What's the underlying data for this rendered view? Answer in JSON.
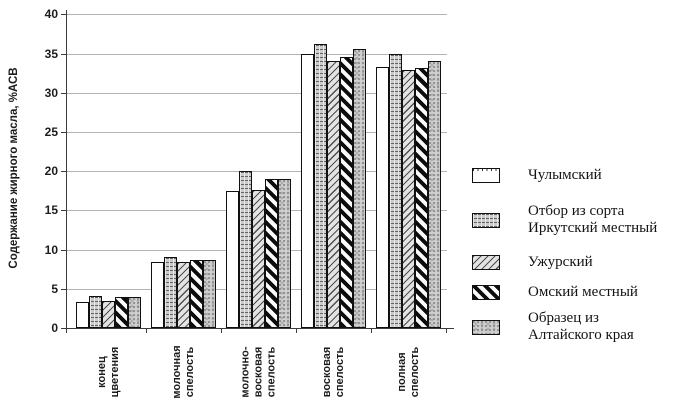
{
  "colors": {
    "background": "#ffffff",
    "grid": "#b4b4b4",
    "axis": "#3c3c3c",
    "text": "#1c1c1c"
  },
  "chart_data": {
    "type": "bar",
    "title": "",
    "xlabel": "",
    "ylabel": "Содержание жирного масла, %АСВ",
    "ylim": [
      0,
      40
    ],
    "yticks": [
      0,
      5,
      10,
      15,
      20,
      25,
      30,
      35,
      40
    ],
    "grid": "horizontal",
    "legend_position": "right",
    "categories": [
      "конец\nцветения",
      "молочная\nспелость",
      "молочно-\nвосковая\nспелость",
      "восковая\nспелость",
      "полная\nспелость"
    ],
    "series": [
      {
        "name": "Чулымский",
        "pattern": "plain-white",
        "values": [
          3.3,
          8.4,
          17.5,
          35.0,
          33.3
        ]
      },
      {
        "name": "Отбор из сорта\nИркутский местный",
        "pattern": "fine-dash-gray-hatch",
        "values": [
          4.1,
          9.0,
          20.0,
          36.2,
          35.0
        ]
      },
      {
        "name": "Ужурский",
        "pattern": "light-diagonal-hatch",
        "values": [
          3.4,
          8.4,
          17.6,
          34.0,
          32.9
        ]
      },
      {
        "name": "Омский местный",
        "pattern": "black-diagonal-stripes",
        "values": [
          4.0,
          8.7,
          19.0,
          34.6,
          33.2
        ]
      },
      {
        "name": "Образец из\nАлтайского края",
        "pattern": "speckled-gray",
        "values": [
          4.0,
          8.7,
          19.0,
          35.6,
          34.1
        ]
      }
    ]
  }
}
